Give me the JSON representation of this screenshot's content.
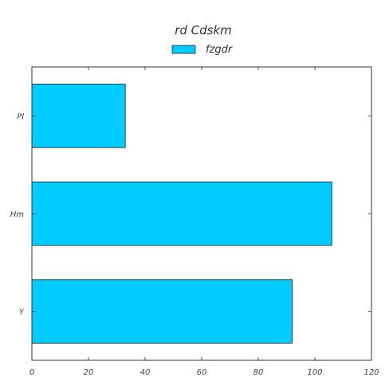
{
  "chart_data": {
    "type": "bar",
    "orientation": "horizontal",
    "title": "rd Cdskm",
    "xlabel": "",
    "ylabel": "",
    "categories": [
      "Y",
      "Hm",
      "Pl"
    ],
    "series": [
      {
        "name": "fzgdr",
        "values": [
          92,
          106,
          33
        ],
        "color": "#00ccff"
      }
    ],
    "xlim": [
      0,
      120
    ],
    "xticks": [
      0,
      20,
      40,
      60,
      80,
      100,
      120
    ],
    "grid": false,
    "legend_position": "top-center"
  }
}
